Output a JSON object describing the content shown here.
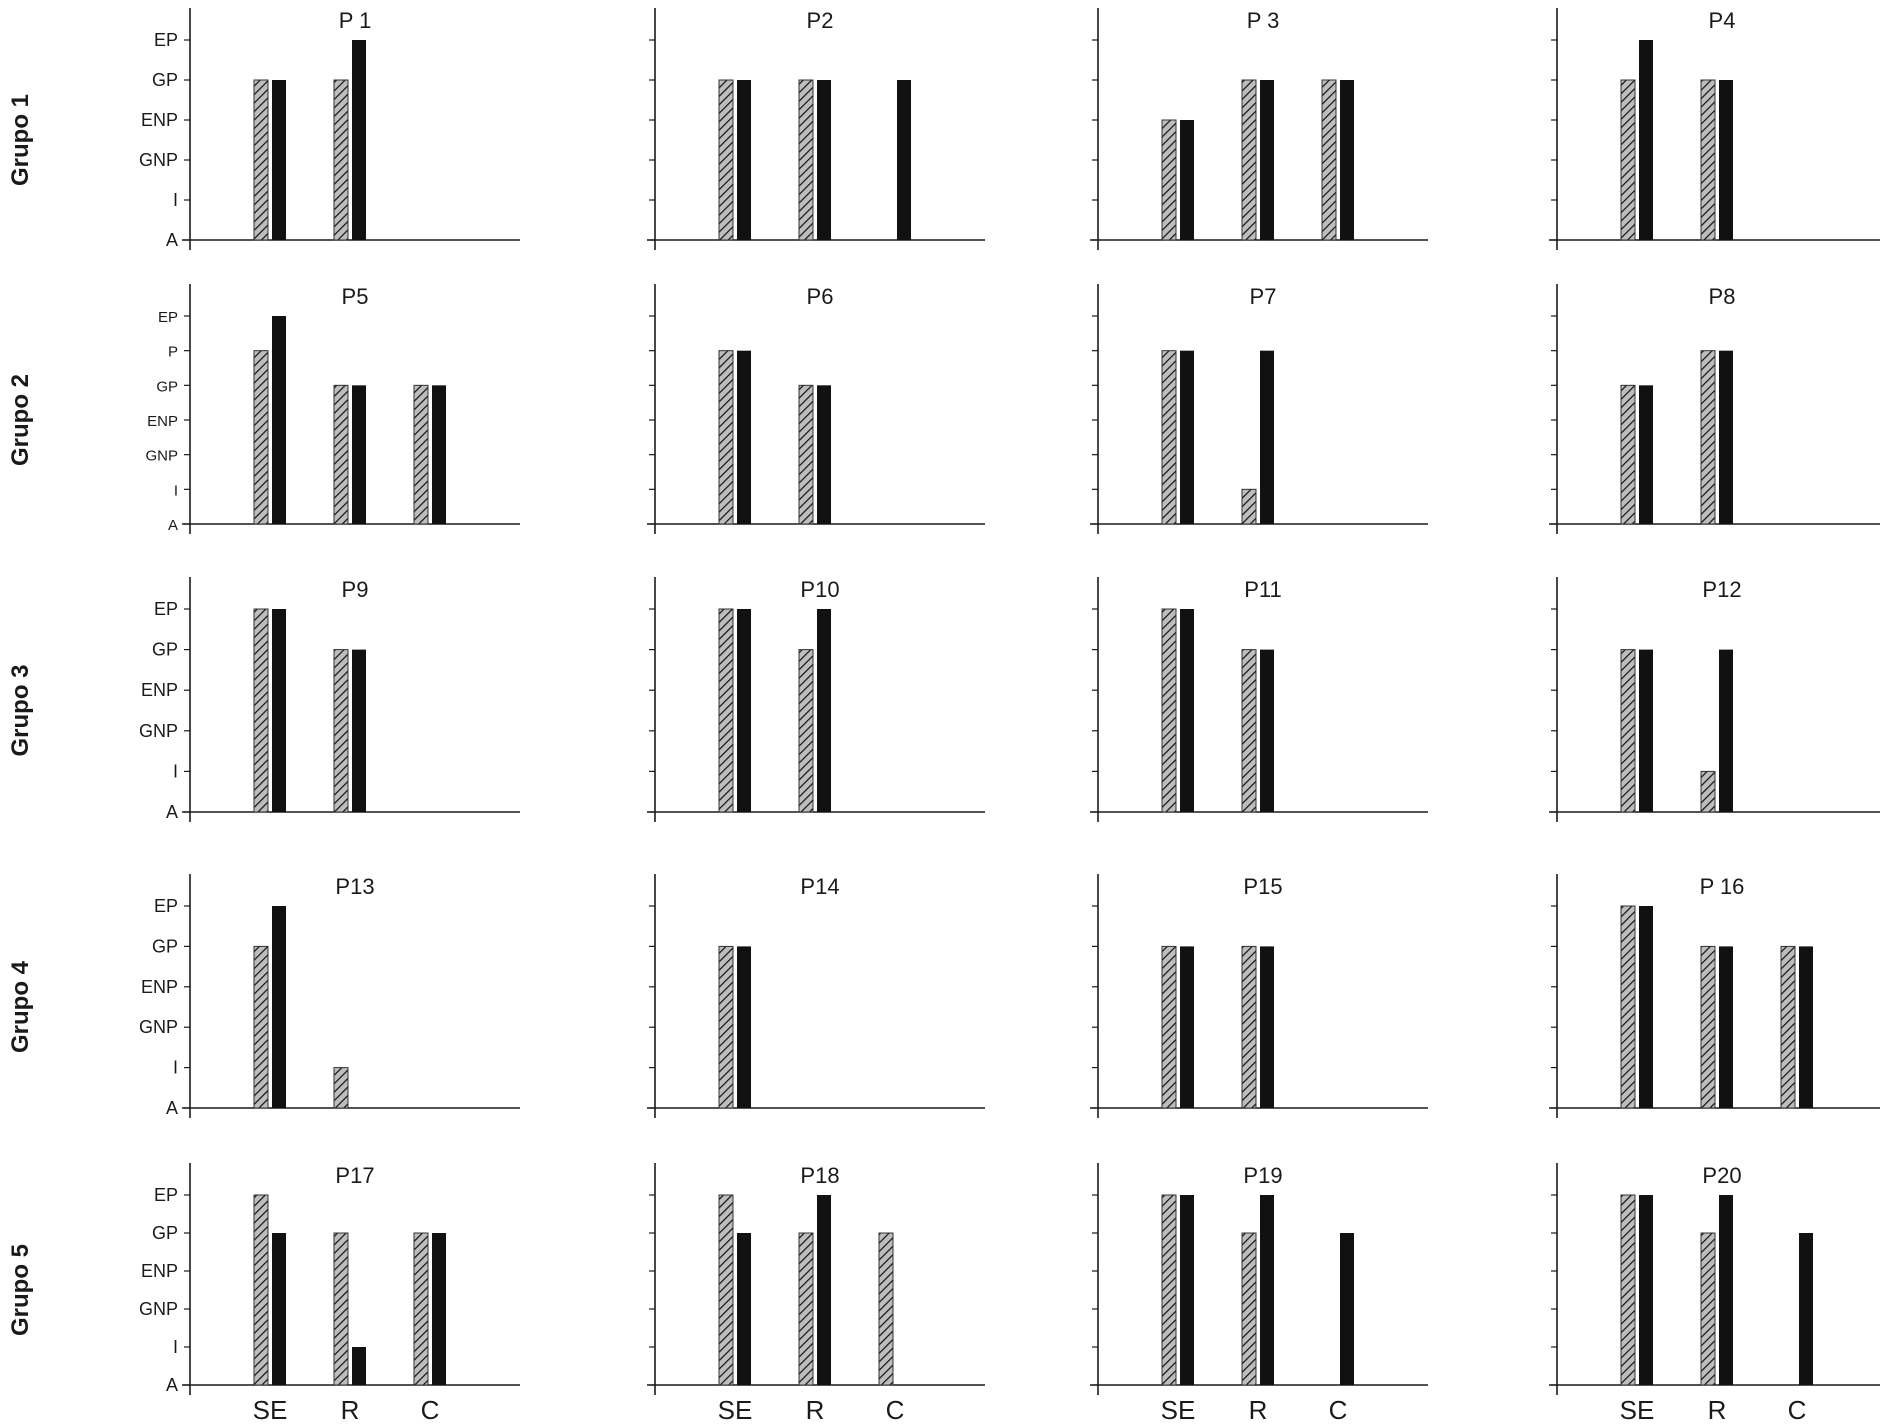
{
  "ylevels_standard": [
    "A",
    "I",
    "GNP",
    "ENP",
    "GP",
    "EP"
  ],
  "ylevels_group2": [
    "A",
    "I",
    "GNP",
    "ENP",
    "GP",
    "P",
    "EP"
  ],
  "x_categories": [
    "SE",
    "R",
    "C"
  ],
  "groups": [
    "Grupo 1",
    "Grupo 2",
    "Grupo 3",
    "Grupo 4",
    "Grupo 5"
  ],
  "colors": {
    "hatched": "#bdbdbd",
    "solid": "#111111",
    "axis": "#1a1a1a"
  },
  "chart_data": [
    {
      "type": "bar",
      "title": "P 1",
      "group": "Grupo 1",
      "levels": [
        "A",
        "I",
        "GNP",
        "ENP",
        "GP",
        "EP"
      ],
      "categories": [
        "SE",
        "R",
        "C"
      ],
      "series": [
        {
          "pattern": "hatched",
          "values": [
            "GP",
            "GP",
            null
          ]
        },
        {
          "pattern": "solid",
          "values": [
            "GP",
            "EP",
            null
          ]
        }
      ]
    },
    {
      "type": "bar",
      "title": "P2",
      "group": "Grupo 1",
      "levels": [
        "A",
        "I",
        "GNP",
        "ENP",
        "GP",
        "EP"
      ],
      "categories": [
        "SE",
        "R",
        "C"
      ],
      "series": [
        {
          "pattern": "hatched",
          "values": [
            "GP",
            "GP",
            null
          ]
        },
        {
          "pattern": "solid",
          "values": [
            "GP",
            "GP",
            "GP"
          ]
        }
      ]
    },
    {
      "type": "bar",
      "title": "P 3",
      "group": "Grupo 1",
      "levels": [
        "A",
        "I",
        "GNP",
        "ENP",
        "GP",
        "EP"
      ],
      "categories": [
        "SE",
        "R",
        "C"
      ],
      "series": [
        {
          "pattern": "hatched",
          "values": [
            "ENP",
            "GP",
            "GP"
          ]
        },
        {
          "pattern": "solid",
          "values": [
            "ENP",
            "GP",
            "GP"
          ]
        }
      ]
    },
    {
      "type": "bar",
      "title": "P4",
      "group": "Grupo 1",
      "levels": [
        "A",
        "I",
        "GNP",
        "ENP",
        "GP",
        "EP"
      ],
      "categories": [
        "SE",
        "R",
        "C"
      ],
      "series": [
        {
          "pattern": "hatched",
          "values": [
            "GP",
            "GP",
            null
          ]
        },
        {
          "pattern": "solid",
          "values": [
            "EP",
            "GP",
            null
          ]
        }
      ]
    },
    {
      "type": "bar",
      "title": "P5",
      "group": "Grupo 2",
      "levels": [
        "A",
        "I",
        "GNP",
        "ENP",
        "GP",
        "P",
        "EP"
      ],
      "categories": [
        "SE",
        "R",
        "C"
      ],
      "series": [
        {
          "pattern": "hatched",
          "values": [
            "P",
            "GP",
            "GP"
          ]
        },
        {
          "pattern": "solid",
          "values": [
            "EP",
            "GP",
            "GP"
          ]
        }
      ]
    },
    {
      "type": "bar",
      "title": "P6",
      "group": "Grupo 2",
      "levels": [
        "A",
        "I",
        "GNP",
        "ENP",
        "GP",
        "P",
        "EP"
      ],
      "categories": [
        "SE",
        "R",
        "C"
      ],
      "series": [
        {
          "pattern": "hatched",
          "values": [
            "P",
            "GP",
            null
          ]
        },
        {
          "pattern": "solid",
          "values": [
            "P",
            "GP",
            null
          ]
        }
      ]
    },
    {
      "type": "bar",
      "title": "P7",
      "group": "Grupo 2",
      "levels": [
        "A",
        "I",
        "GNP",
        "ENP",
        "GP",
        "P",
        "EP"
      ],
      "categories": [
        "SE",
        "R",
        "C"
      ],
      "series": [
        {
          "pattern": "hatched",
          "values": [
            "P",
            "I",
            null
          ]
        },
        {
          "pattern": "solid",
          "values": [
            "P",
            "P",
            null
          ]
        }
      ]
    },
    {
      "type": "bar",
      "title": "P8",
      "group": "Grupo 2",
      "levels": [
        "A",
        "I",
        "GNP",
        "ENP",
        "GP",
        "P",
        "EP"
      ],
      "categories": [
        "SE",
        "R",
        "C"
      ],
      "series": [
        {
          "pattern": "hatched",
          "values": [
            "GP",
            "P",
            null
          ]
        },
        {
          "pattern": "solid",
          "values": [
            "GP",
            "P",
            null
          ]
        }
      ]
    },
    {
      "type": "bar",
      "title": "P9",
      "group": "Grupo 3",
      "levels": [
        "A",
        "I",
        "GNP",
        "ENP",
        "GP",
        "EP"
      ],
      "categories": [
        "SE",
        "R",
        "C"
      ],
      "series": [
        {
          "pattern": "hatched",
          "values": [
            "EP",
            "GP",
            null
          ]
        },
        {
          "pattern": "solid",
          "values": [
            "EP",
            "GP",
            null
          ]
        }
      ]
    },
    {
      "type": "bar",
      "title": "P10",
      "group": "Grupo 3",
      "levels": [
        "A",
        "I",
        "GNP",
        "ENP",
        "GP",
        "EP"
      ],
      "categories": [
        "SE",
        "R",
        "C"
      ],
      "series": [
        {
          "pattern": "hatched",
          "values": [
            "EP",
            "GP",
            null
          ]
        },
        {
          "pattern": "solid",
          "values": [
            "EP",
            "EP",
            null
          ]
        }
      ]
    },
    {
      "type": "bar",
      "title": "P11",
      "group": "Grupo 3",
      "levels": [
        "A",
        "I",
        "GNP",
        "ENP",
        "GP",
        "EP"
      ],
      "categories": [
        "SE",
        "R",
        "C"
      ],
      "series": [
        {
          "pattern": "hatched",
          "values": [
            "EP",
            "GP",
            null
          ]
        },
        {
          "pattern": "solid",
          "values": [
            "EP",
            "GP",
            null
          ]
        }
      ]
    },
    {
      "type": "bar",
      "title": "P12",
      "group": "Grupo 3",
      "levels": [
        "A",
        "I",
        "GNP",
        "ENP",
        "GP",
        "EP"
      ],
      "categories": [
        "SE",
        "R",
        "C"
      ],
      "series": [
        {
          "pattern": "hatched",
          "values": [
            "GP",
            "I",
            null
          ]
        },
        {
          "pattern": "solid",
          "values": [
            "GP",
            "GP",
            null
          ]
        }
      ]
    },
    {
      "type": "bar",
      "title": "P13",
      "group": "Grupo 4",
      "levels": [
        "A",
        "I",
        "GNP",
        "ENP",
        "GP",
        "EP"
      ],
      "categories": [
        "SE",
        "R",
        "C"
      ],
      "series": [
        {
          "pattern": "hatched",
          "values": [
            "GP",
            "I",
            null
          ]
        },
        {
          "pattern": "solid",
          "values": [
            "EP",
            null,
            null
          ]
        }
      ]
    },
    {
      "type": "bar",
      "title": "P14",
      "group": "Grupo 4",
      "levels": [
        "A",
        "I",
        "GNP",
        "ENP",
        "GP",
        "EP"
      ],
      "categories": [
        "SE",
        "R",
        "C"
      ],
      "series": [
        {
          "pattern": "hatched",
          "values": [
            "GP",
            null,
            null
          ]
        },
        {
          "pattern": "solid",
          "values": [
            "GP",
            null,
            null
          ]
        }
      ]
    },
    {
      "type": "bar",
      "title": "P15",
      "group": "Grupo 4",
      "levels": [
        "A",
        "I",
        "GNP",
        "ENP",
        "GP",
        "EP"
      ],
      "categories": [
        "SE",
        "R",
        "C"
      ],
      "series": [
        {
          "pattern": "hatched",
          "values": [
            "GP",
            "GP",
            null
          ]
        },
        {
          "pattern": "solid",
          "values": [
            "GP",
            "GP",
            null
          ]
        }
      ]
    },
    {
      "type": "bar",
      "title": "P 16",
      "group": "Grupo 4",
      "levels": [
        "A",
        "I",
        "GNP",
        "ENP",
        "GP",
        "EP"
      ],
      "categories": [
        "SE",
        "R",
        "C"
      ],
      "series": [
        {
          "pattern": "hatched",
          "values": [
            "EP",
            "GP",
            "GP"
          ]
        },
        {
          "pattern": "solid",
          "values": [
            "EP",
            "GP",
            "GP"
          ]
        }
      ]
    },
    {
      "type": "bar",
      "title": "P17",
      "group": "Grupo 5",
      "levels": [
        "A",
        "I",
        "GNP",
        "ENP",
        "GP",
        "EP"
      ],
      "categories": [
        "SE",
        "R",
        "C"
      ],
      "series": [
        {
          "pattern": "hatched",
          "values": [
            "EP",
            "GP",
            "GP"
          ]
        },
        {
          "pattern": "solid",
          "values": [
            "GP",
            "I",
            "GP"
          ]
        }
      ]
    },
    {
      "type": "bar",
      "title": "P18",
      "group": "Grupo 5",
      "levels": [
        "A",
        "I",
        "GNP",
        "ENP",
        "GP",
        "EP"
      ],
      "categories": [
        "SE",
        "R",
        "C"
      ],
      "series": [
        {
          "pattern": "hatched",
          "values": [
            "EP",
            "GP",
            "GP"
          ]
        },
        {
          "pattern": "solid",
          "values": [
            "GP",
            "EP",
            null
          ]
        }
      ]
    },
    {
      "type": "bar",
      "title": "P19",
      "group": "Grupo 5",
      "levels": [
        "A",
        "I",
        "GNP",
        "ENP",
        "GP",
        "EP"
      ],
      "categories": [
        "SE",
        "R",
        "C"
      ],
      "series": [
        {
          "pattern": "hatched",
          "values": [
            "EP",
            "GP",
            null
          ]
        },
        {
          "pattern": "solid",
          "values": [
            "EP",
            "EP",
            "GP"
          ]
        }
      ]
    },
    {
      "type": "bar",
      "title": "P20",
      "group": "Grupo 5",
      "levels": [
        "A",
        "I",
        "GNP",
        "ENP",
        "GP",
        "EP"
      ],
      "categories": [
        "SE",
        "R",
        "C"
      ],
      "series": [
        {
          "pattern": "hatched",
          "values": [
            "EP",
            "GP",
            null
          ]
        },
        {
          "pattern": "solid",
          "values": [
            "EP",
            "EP",
            "GP"
          ]
        }
      ]
    }
  ]
}
